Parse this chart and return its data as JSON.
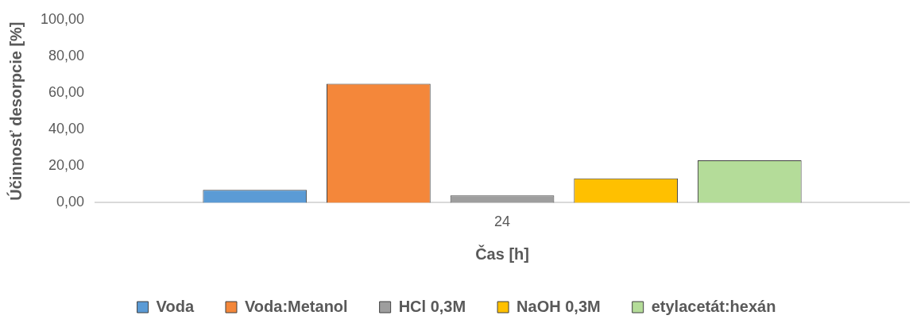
{
  "chart_data": {
    "type": "bar",
    "categories": [
      "24"
    ],
    "series": [
      {
        "name": "Voda",
        "color": "#5b9bd5",
        "values": [
          7
        ]
      },
      {
        "name": "Voda:Metanol",
        "color": "#f4873a",
        "values": [
          65
        ]
      },
      {
        "name": "HCl 0,3M",
        "color": "#9e9e9e",
        "values": [
          4
        ]
      },
      {
        "name": "NaOH 0,3M",
        "color": "#ffc000",
        "values": [
          13.3
        ]
      },
      {
        "name": "etylacetát:hexán",
        "color": "#b4dc99",
        "values": [
          23.2
        ]
      }
    ],
    "xlabel": "Čas [h]",
    "ylabel": "Účinnosť desorpcie [%]",
    "ylim": [
      0,
      100
    ],
    "yticks": [
      {
        "value": 0,
        "label": "0,00"
      },
      {
        "value": 20,
        "label": "20,00"
      },
      {
        "value": 40,
        "label": "40,00"
      },
      {
        "value": 60,
        "label": "60,00"
      },
      {
        "value": 80,
        "label": "80,00"
      },
      {
        "value": 100,
        "label": "100,00"
      }
    ],
    "grid": false,
    "legend": "bottom"
  }
}
